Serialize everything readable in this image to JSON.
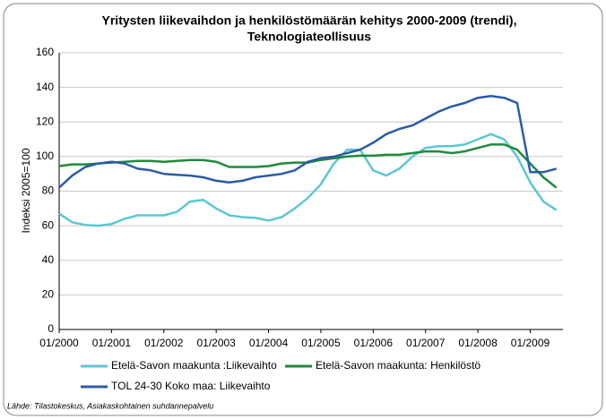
{
  "chart_data": {
    "type": "line",
    "title": [
      "Yritysten liikevaihdon ja henkilöstömäärän kehitys 2000-2009 (trendi),",
      "Teknologiateollisuus"
    ],
    "y_label": "Indeksi 2005=100",
    "source": "Lähde: Tilastokeskus, Asiakaskohtainen suhdannepalvelu",
    "categories": [
      "01/2000",
      null,
      null,
      null,
      "01/2001",
      null,
      null,
      null,
      "01/2002",
      null,
      null,
      null,
      "01/2003",
      null,
      null,
      null,
      "01/2004",
      null,
      null,
      null,
      "01/2005",
      null,
      null,
      null,
      "01/2006",
      null,
      null,
      null,
      "01/2007",
      null,
      null,
      null,
      "01/2008",
      null,
      null,
      null,
      "01/2009",
      null,
      null
    ],
    "series": [
      {
        "name": "Etelä-Savon maakunta :Liikevaihto",
        "color": "#5cc6d6",
        "values": [
          67,
          62,
          60.5,
          60,
          61,
          64,
          66,
          66,
          66,
          68,
          74,
          75,
          70,
          66,
          65,
          64.5,
          63,
          65,
          70,
          76,
          84,
          96,
          104,
          104,
          92,
          89,
          93,
          100,
          105,
          106,
          106,
          107,
          110,
          113,
          110,
          100,
          85,
          74,
          69
        ]
      },
      {
        "name": "Etelä-Savon maakunta: Henkilöstö",
        "color": "#1f8a3c",
        "values": [
          94.5,
          95.5,
          95.5,
          96,
          96.5,
          97,
          97.5,
          97.5,
          97,
          97.5,
          98,
          98,
          97,
          94,
          94,
          94,
          94.5,
          96,
          96.5,
          96.5,
          98,
          99,
          100,
          100.5,
          100.5,
          101,
          101,
          102,
          103,
          103,
          102,
          103,
          105,
          107,
          107,
          104,
          96,
          88,
          82
        ]
      },
      {
        "name": "TOL 24-30 Koko maa: Liikevaihto",
        "color": "#2b5ba8",
        "values": [
          82,
          89,
          94,
          96,
          97,
          96,
          93,
          92,
          90,
          89.5,
          89,
          88,
          86,
          85,
          86,
          88,
          89,
          90,
          92,
          97,
          99,
          100,
          102,
          104,
          108,
          113,
          116,
          118,
          122,
          126,
          129,
          131,
          134,
          135,
          134,
          131,
          91,
          91,
          93
        ]
      }
    ],
    "ylim": [
      0,
      160
    ],
    "yticks": [
      0,
      20,
      40,
      60,
      80,
      100,
      120,
      140,
      160
    ],
    "grid": true
  }
}
